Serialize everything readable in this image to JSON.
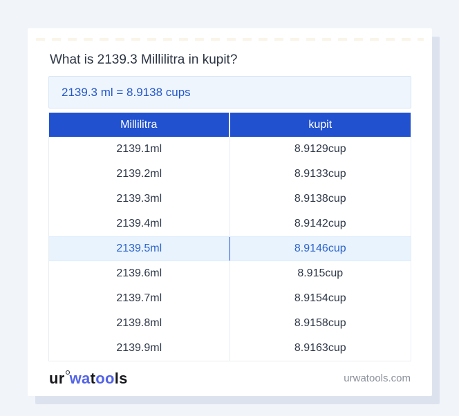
{
  "card": {
    "title": "What is 2139.3 Millilitra in kupit?",
    "result": "2139.3 ml = 8.9138 cups"
  },
  "table": {
    "headers": [
      "Millilitra",
      "kupit"
    ],
    "rows": [
      {
        "ml": "2139.1ml",
        "cup": "8.9129cup",
        "highlight": false
      },
      {
        "ml": "2139.2ml",
        "cup": "8.9133cup",
        "highlight": false
      },
      {
        "ml": "2139.3ml",
        "cup": "8.9138cup",
        "highlight": false
      },
      {
        "ml": "2139.4ml",
        "cup": "8.9142cup",
        "highlight": false
      },
      {
        "ml": "2139.5ml",
        "cup": "8.9146cup",
        "highlight": true
      },
      {
        "ml": "2139.6ml",
        "cup": "8.915cup",
        "highlight": false
      },
      {
        "ml": "2139.7ml",
        "cup": "8.9154cup",
        "highlight": false
      },
      {
        "ml": "2139.8ml",
        "cup": "8.9158cup",
        "highlight": false
      },
      {
        "ml": "2139.9ml",
        "cup": "8.9163cup",
        "highlight": false
      }
    ]
  },
  "footer": {
    "logo_parts": {
      "p1": "ur",
      "p2": "wa",
      "p3": "t",
      "p4": "oo",
      "p5": "ls"
    },
    "domain": "urwatools.com"
  },
  "colors": {
    "page_bg": "#f1f4f9",
    "header_blue": "#2151cf",
    "result_text_blue": "#2457c8",
    "result_bg": "#eef5fd",
    "highlight_row_bg": "#e9f3fd",
    "highlight_row_text": "#2b63ca",
    "logo_blue": "#5263e8",
    "row_text": "#2e3848",
    "shadow": "#dde3ee"
  }
}
